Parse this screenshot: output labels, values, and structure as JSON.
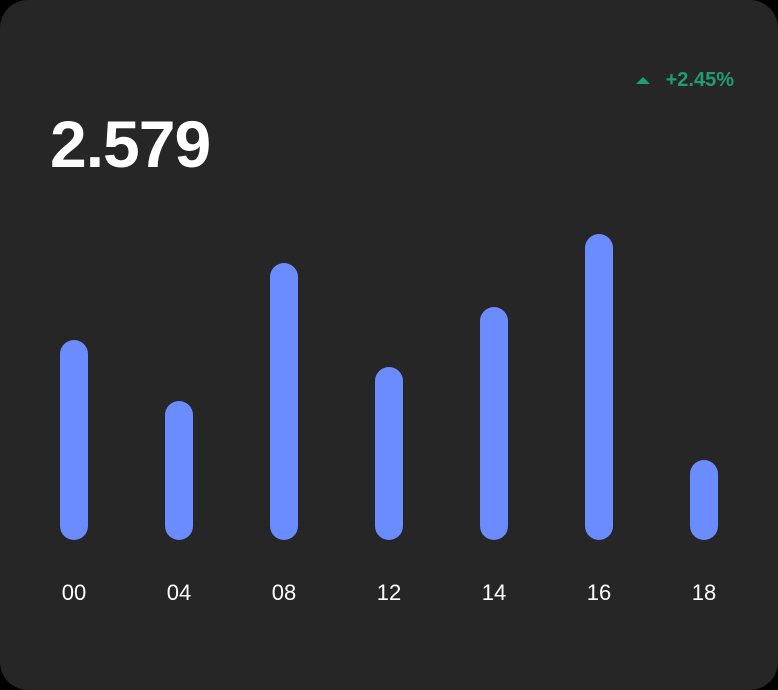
{
  "card": {
    "value": "2.579",
    "change": "+2.45%",
    "change_icon": "arrow-up-icon",
    "colors": {
      "background": "#262626",
      "bar": "#6b8cff",
      "positive": "#1f9d74",
      "text": "#ffffff"
    }
  },
  "chart_data": {
    "type": "bar",
    "categories": [
      "00",
      "04",
      "08",
      "12",
      "14",
      "16",
      "18"
    ],
    "values": [
      200,
      139,
      277,
      173,
      233,
      306,
      80
    ],
    "ylim": [
      0,
      320
    ],
    "grid": false,
    "title": "",
    "xlabel": "",
    "ylabel": ""
  }
}
